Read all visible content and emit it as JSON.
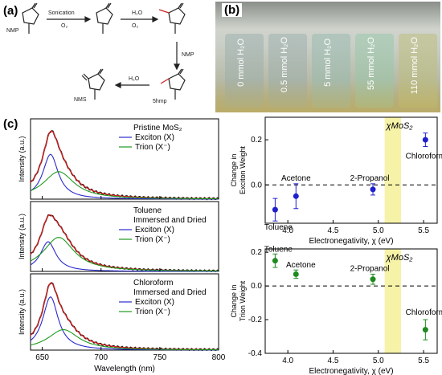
{
  "panel_a": {
    "label": "(a)",
    "molecules": [
      "NMP",
      "",
      "",
      "5hmp",
      "NMS"
    ],
    "arrows": [
      {
        "top": "Sonication",
        "bottom": "O₂"
      },
      {
        "top": "H₂O",
        "bottom": "O₂"
      },
      {
        "top": "NMP",
        "bottom": ""
      },
      {
        "top": "H₂O",
        "bottom": ""
      }
    ]
  },
  "panel_b": {
    "label": "(b)",
    "vials": [
      "0 mmol H₂O",
      "0.5 mmol H₂O",
      "5 mmol H₂O",
      "55 mmol H₂O",
      "110 mmol H₂O"
    ]
  },
  "panel_c": {
    "label": "(c)",
    "spectra": [
      {
        "title_lines": [
          "Pristine MoS₂"
        ],
        "exciton": "Exciton (X)",
        "trion": "Trion (X⁻)",
        "ex_peak": 657,
        "ex_amp": 0.62,
        "tr_peak": 664,
        "tr_amp": 0.38
      },
      {
        "title_lines": [
          "Toluene",
          "Immersed and Dried"
        ],
        "exciton": "Exciton (X)",
        "trion": "Trion (X⁻)",
        "ex_peak": 655,
        "ex_amp": 0.48,
        "tr_peak": 664,
        "tr_amp": 0.55
      },
      {
        "title_lines": [
          "Chloroform",
          "Immersed and Dried"
        ],
        "exciton": "Exciton (X)",
        "trion": "Trion (X⁻)",
        "ex_peak": 657,
        "ex_amp": 0.78,
        "tr_peak": 668,
        "tr_amp": 0.3
      }
    ],
    "ylabel": "Intensity (a.u.)",
    "xlabel": "Wavelength (nm)",
    "xticks": [
      "650",
      "700",
      "750",
      "800"
    ],
    "xrange": [
      640,
      800
    ]
  },
  "chart_data": [
    {
      "type": "scatter",
      "xlabel": "Electronegativity, χ (eV)",
      "ylabel": [
        "Change in",
        "Exciton Weight"
      ],
      "xlim": [
        3.75,
        5.65
      ],
      "ylim": [
        -0.17,
        0.3
      ],
      "xticks": [
        "4.0",
        "4.5",
        "5.0",
        "5.5"
      ],
      "yticks": [
        "-0.2",
        "0.0",
        "0.2"
      ],
      "band_label": "χMoS₂",
      "band": [
        5.07,
        5.25
      ],
      "points": [
        {
          "label": "Toluene",
          "x": 3.86,
          "y": -0.11,
          "err": 0.05
        },
        {
          "label": "Acetone",
          "x": 4.09,
          "y": -0.05,
          "err": 0.055
        },
        {
          "label": "2-Propanol",
          "x": 4.94,
          "y": -0.02,
          "err": 0.025
        },
        {
          "label": "Chloroform",
          "x": 5.52,
          "y": 0.2,
          "err": 0.03
        }
      ],
      "color": "#1f1fcf"
    },
    {
      "type": "scatter",
      "xlabel": "Electronegativity, χ (eV)",
      "ylabel": [
        "Change in",
        "Trion Weight"
      ],
      "xlim": [
        3.75,
        5.65
      ],
      "ylim": [
        -0.4,
        0.22
      ],
      "xticks": [
        "4.0",
        "4.5",
        "5.0",
        "5.5"
      ],
      "yticks": [
        "-0.4",
        "-0.2",
        "0.0",
        "0.2"
      ],
      "band_label": "χMoS₂",
      "band": [
        5.07,
        5.25
      ],
      "points": [
        {
          "label": "Toluene",
          "x": 3.86,
          "y": 0.15,
          "err": 0.04
        },
        {
          "label": "Acetone",
          "x": 4.09,
          "y": 0.07,
          "err": 0.025
        },
        {
          "label": "2-Propanol",
          "x": 4.94,
          "y": 0.04,
          "err": 0.03
        },
        {
          "label": "Chloroform",
          "x": 5.52,
          "y": -0.26,
          "err": 0.06
        }
      ],
      "color": "#1f8a1f"
    }
  ]
}
